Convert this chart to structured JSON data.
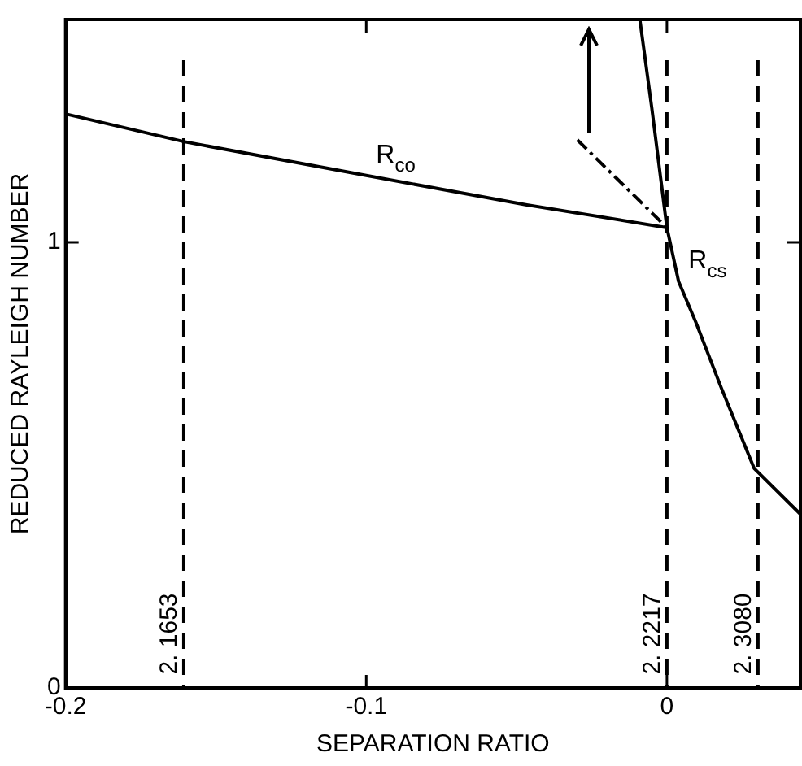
{
  "chart_data": {
    "type": "line",
    "xlabel": "SEPARATION RATIO",
    "ylabel": "REDUCED RAYLEIGH NUMBER",
    "xlim": [
      -0.2,
      0.0444
    ],
    "ylim": [
      0,
      1.5
    ],
    "xticks": [
      -0.2,
      -0.1,
      0
    ],
    "yticks": [
      0,
      1
    ],
    "grid": false,
    "legend": false,
    "marker": "none",
    "series": [
      {
        "name": "R$_{co}$",
        "color": "#000000",
        "line_style": "solid",
        "x": [
          -0.2,
          -0.1607,
          -0.1,
          -0.0466,
          0
        ],
        "values": [
          1.288,
          1.226,
          1.15,
          1.084,
          1.033
        ]
      },
      {
        "name": "R$_{cs}$",
        "color": "#000000",
        "line_style": "solid",
        "x": [
          -0.009,
          -0.005,
          -0.002,
          0,
          0.0039,
          0.0096,
          0.018,
          0.029,
          0.0444
        ],
        "values": [
          1.5,
          1.3,
          1.14,
          1.033,
          0.912,
          0.821,
          0.675,
          0.493,
          0.39
        ]
      },
      {
        "color": "#000000",
        "line_style": "dashed",
        "x": [
          -0.0298,
          0
        ],
        "values": [
          1.23,
          1.033
        ]
      }
    ],
    "ref_lines": [
      {
        "axis": "x",
        "value": -0.1607,
        "line_style": "dashed"
      },
      {
        "axis": "x",
        "value": 0,
        "line_style": "dashed"
      },
      {
        "axis": "x",
        "value": 0.0303,
        "line_style": "dashed"
      }
    ],
    "annotations": [
      {
        "text": "2. 1653",
        "x": -0.1607,
        "y": 0.03
      },
      {
        "text": "2. 2217",
        "x": 0,
        "y": 0.03
      },
      {
        "text": "2. 3080",
        "x": 0.0303,
        "y": 0.03
      }
    ]
  }
}
